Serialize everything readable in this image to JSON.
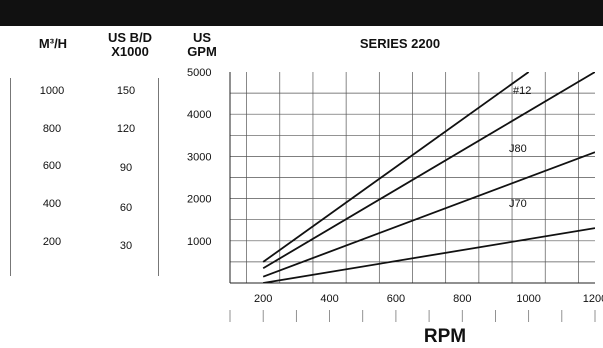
{
  "header": {
    "col_m3h": "M³/H",
    "col_usbd_1": "US B/D",
    "col_usbd_2": "X1000",
    "col_usgpm_1": "US",
    "col_usgpm_2": "GPM",
    "series_title": "SERIES 2200"
  },
  "scales": {
    "m3h": [
      "1000",
      "800",
      "600",
      "400",
      "200"
    ],
    "usbd": [
      "150",
      "120",
      "90",
      "60",
      "30"
    ]
  },
  "chart_data": {
    "type": "line",
    "title": "SERIES 2200",
    "xlabel": "RPM",
    "ylabel": "US GPM",
    "xlim": [
      100,
      1200
    ],
    "ylim": [
      0,
      5000
    ],
    "xticks": [
      200,
      400,
      600,
      800,
      1000,
      1200
    ],
    "xtick_labels": [
      "200",
      "400",
      "600",
      "800",
      "1000",
      "1200"
    ],
    "yticks": [
      1000,
      2000,
      3000,
      4000,
      5000
    ],
    "ytick_labels": [
      "1000",
      "2000",
      "3000",
      "4000",
      "5000"
    ],
    "grid": true,
    "series": [
      {
        "name": "#12",
        "x": [
          200,
          1000
        ],
        "y": [
          500,
          5000
        ]
      },
      {
        "name": "J80",
        "x": [
          200,
          1200
        ],
        "y": [
          350,
          5000
        ]
      },
      {
        "name": "J70",
        "x": [
          200,
          1200
        ],
        "y": [
          150,
          3100
        ]
      },
      {
        "name": "",
        "x": [
          200,
          1200
        ],
        "y": [
          0,
          1300
        ]
      }
    ]
  }
}
